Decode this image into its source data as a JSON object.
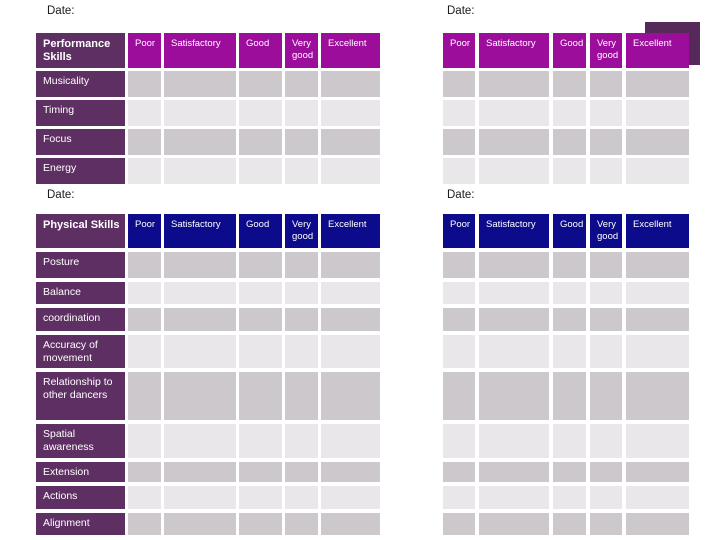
{
  "dates": {
    "label": "Date:"
  },
  "ratings": [
    "Poor",
    "Satisfactory",
    "Good",
    "Very good",
    "Excellent"
  ],
  "performance_table": {
    "title": "Performance Skills",
    "header_color": "#9c0d9c",
    "row_labels": [
      "Musicality",
      "Timing",
      "Focus",
      "Energy"
    ]
  },
  "physical_table": {
    "title": "Physical Skills",
    "header_color": "#0b0b8c",
    "row_labels": [
      "Posture",
      "Balance",
      "coordination",
      "Accuracy of movement",
      "Relationship to other dancers",
      "Spatial awareness",
      "Extension",
      "Actions",
      "Alignment"
    ]
  },
  "colors": {
    "skill_label_cell": "#5e2f62",
    "grid_cell_dark": "#ccc8cc",
    "grid_cell_light": "#e9e7ea",
    "decoration": "#552a5b",
    "page_background": "#ffffff",
    "date_text": "#1b1b1b"
  }
}
